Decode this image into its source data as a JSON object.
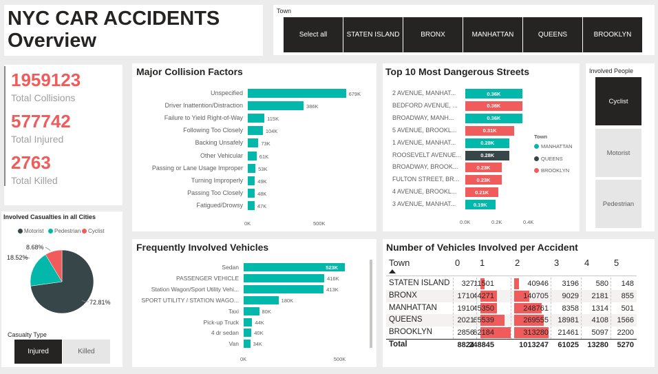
{
  "header": {
    "title_line1": "NYC CAR ACCIDENTS",
    "title_line2": "Overview"
  },
  "town_slicer": {
    "label": "Town",
    "buttons": [
      "Select all",
      "STATEN ISLAND",
      "BRONX",
      "MANHATTAN",
      "QUEENS",
      "BROOKLYN"
    ]
  },
  "kpis": [
    {
      "value": "1959123",
      "label": "Total Collisions"
    },
    {
      "value": "577742",
      "label": "Total Injured"
    },
    {
      "value": "2763",
      "label": "Total Killed"
    }
  ],
  "casualties": {
    "title": "Involved Casualties in all Cities",
    "legend": [
      "Motorist",
      "Pedestrian",
      "Cyclist"
    ],
    "colors": {
      "Motorist": "#374649",
      "Pedestrian": "#01b8aa",
      "Cyclist": "#f05b5b"
    },
    "labels": {
      "motorist": "72.81%",
      "pedestrian": "18.52%",
      "cyclist": "8.68%"
    }
  },
  "casualty_type": {
    "label": "Casualty Type",
    "options": [
      "Injured",
      "Killed"
    ],
    "selected": "Injured"
  },
  "involved_people": {
    "label": "Involved People",
    "options": [
      "Cyclist",
      "Motorist",
      "Pedestrian"
    ],
    "selected": "Cyclist"
  },
  "chart_data": [
    {
      "type": "bar",
      "orientation": "horizontal",
      "title": "Major Collision Factors",
      "categories": [
        "Unspecified",
        "Driver Inattention/Distraction",
        "Failure to Yield Right-of-Way",
        "Following Too Closely",
        "Backing Unsafely",
        "Other Vehicular",
        "Passing or Lane Usage Improper",
        "Turning Improperly",
        "Passing Too Closely",
        "Fatigued/Drowsy"
      ],
      "values": [
        679000,
        386000,
        115000,
        104000,
        73000,
        61000,
        53000,
        49000,
        48000,
        47000
      ],
      "data_labels": [
        "679K",
        "386K",
        "115K",
        "104K",
        "73K",
        "61K",
        "53K",
        "49K",
        "48K",
        "47K"
      ],
      "ticks": [
        "0K",
        "500K"
      ],
      "xlim": [
        0,
        700000
      ]
    },
    {
      "type": "bar",
      "orientation": "horizontal",
      "title": "Top 10 Most Dangerous Streets",
      "categories": [
        "2 AVENUE, MANHAT...",
        "BEDFORD AVENUE, ...",
        "BROADWAY, MANH...",
        "5 AVENUE, BROOKL...",
        "1 AVENUE, MANHAT...",
        "ROOSEVELT AVENUE...",
        "BROADWAY, BROOK...",
        "FULTON STREET, BR...",
        "4 AVENUE, BROOKL...",
        "3 AVENUE, MANHAT..."
      ],
      "values": [
        360,
        360,
        360,
        310,
        280,
        280,
        230,
        230,
        210,
        190
      ],
      "data_labels": [
        "0.36K",
        "0.36K",
        "0.36K",
        "0.31K",
        "0.28K",
        "0.28K",
        "0.23K",
        "0.23K",
        "0.21K",
        "0.19K"
      ],
      "towns": [
        "MANHATTAN",
        "BROOKLYN",
        "MANHATTAN",
        "BROOKLYN",
        "MANHATTAN",
        "QUEENS",
        "BROOKLYN",
        "BROOKLYN",
        "BROOKLYN",
        "MANHATTAN"
      ],
      "legend_title": "Town",
      "legend": [
        "MANHATTAN",
        "QUEENS",
        "BROOKLYN"
      ],
      "colors": {
        "MANHATTAN": "#01b8aa",
        "QUEENS": "#374649",
        "BROOKLYN": "#f05b5b"
      },
      "ticks": [
        "0.0K",
        "0.2K",
        "0.4K"
      ],
      "xlim": [
        0,
        400
      ]
    },
    {
      "type": "bar",
      "orientation": "horizontal",
      "title": "Frequently Involved Vehicles",
      "categories": [
        "Sedan",
        "PASSENGER VEHICLE",
        "Station Wagon/Sport Utility Vehi...",
        "SPORT UTILITY / STATION WAGO...",
        "Taxi",
        "Pick-up Truck",
        "4 dr sedan",
        "Van"
      ],
      "values": [
        523000,
        416000,
        413000,
        180000,
        80000,
        44000,
        40000,
        34000
      ],
      "data_labels": [
        "523K",
        "416K",
        "413K",
        "180K",
        "80K",
        "44K",
        "40K",
        "34K"
      ],
      "ticks": [
        "0K",
        "500K"
      ],
      "xlim": [
        0,
        540000
      ]
    },
    {
      "type": "table",
      "title": "Number of Vehicles Involved per Accident",
      "row_header": "Town",
      "columns": [
        "0",
        "1",
        "2",
        "3",
        "4",
        "5"
      ],
      "rows": [
        {
          "name": "STATEN ISLAND",
          "values": [
            327,
            11501,
            40946,
            3196,
            580,
            148
          ]
        },
        {
          "name": "BRONX",
          "values": [
            1710,
            44271,
            140705,
            9029,
            2181,
            855
          ]
        },
        {
          "name": "MANHATTAN",
          "values": [
            1910,
            45350,
            248761,
            8358,
            1314,
            501
          ]
        },
        {
          "name": "QUEENS",
          "values": [
            2021,
            65539,
            269555,
            18981,
            4108,
            1566
          ]
        },
        {
          "name": "BROOKLYN",
          "values": [
            2856,
            82184,
            313280,
            21461,
            5097,
            2200
          ]
        }
      ],
      "total_label": "Total",
      "totals": [
        8824,
        248845,
        1013247,
        61025,
        13280,
        5270
      ]
    }
  ]
}
